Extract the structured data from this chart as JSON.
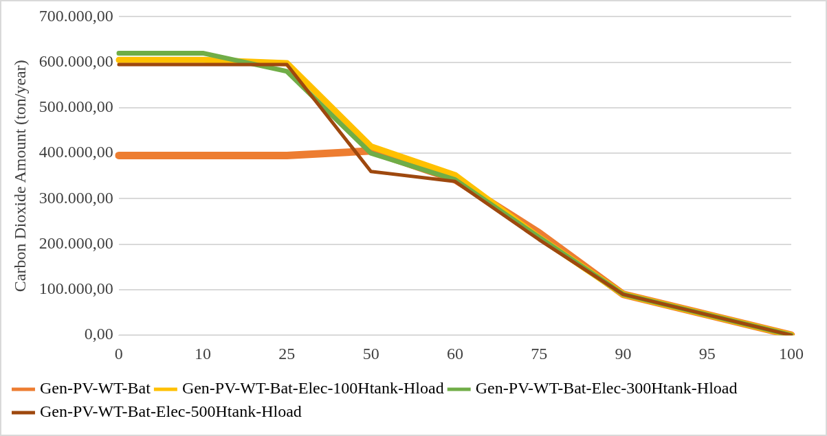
{
  "chart_data": {
    "type": "line",
    "ylabel": "Carbon Dioxide Amount (ton/year)",
    "categories": [
      "0",
      "10",
      "25",
      "50",
      "60",
      "75",
      "90",
      "95",
      "100"
    ],
    "series": [
      {
        "name": "Gen-PV-WT-Bat",
        "color": "#ed7d31",
        "values": [
          395000,
          395000,
          395000,
          405000,
          342000,
          225000,
          90000,
          45000,
          0
        ]
      },
      {
        "name": "Gen-PV-WT-Bat-Elec-100Htank-Hload",
        "color": "#ffc000",
        "values": [
          605000,
          605000,
          598000,
          415000,
          352000,
          215000,
          90000,
          45000,
          0
        ]
      },
      {
        "name": "Gen-PV-WT-Bat-Elec-300Htank-Hload",
        "color": "#70ad47",
        "values": [
          620000,
          620000,
          580000,
          400000,
          342000,
          215000,
          90000,
          45000,
          0
        ]
      },
      {
        "name": "Gen-PV-WT-Bat-Elec-500Htank-Hload",
        "color": "#9e480e",
        "values": [
          595000,
          595000,
          595000,
          360000,
          338000,
          210000,
          90000,
          45000,
          0
        ]
      }
    ],
    "ylim": [
      0,
      700000
    ],
    "yticks": [
      {
        "value": 0,
        "label": "0,00"
      },
      {
        "value": 100000,
        "label": "100.000,00"
      },
      {
        "value": 200000,
        "label": "200.000,00"
      },
      {
        "value": 300000,
        "label": "300.000,00"
      },
      {
        "value": 400000,
        "label": "400.000,00"
      },
      {
        "value": 500000,
        "label": "500.000,00"
      },
      {
        "value": 600000,
        "label": "600.000,00"
      },
      {
        "value": 700000,
        "label": "700.000,00"
      }
    ],
    "grid": "y",
    "legend": "bottom",
    "marker": "none",
    "line_style": "solid"
  }
}
